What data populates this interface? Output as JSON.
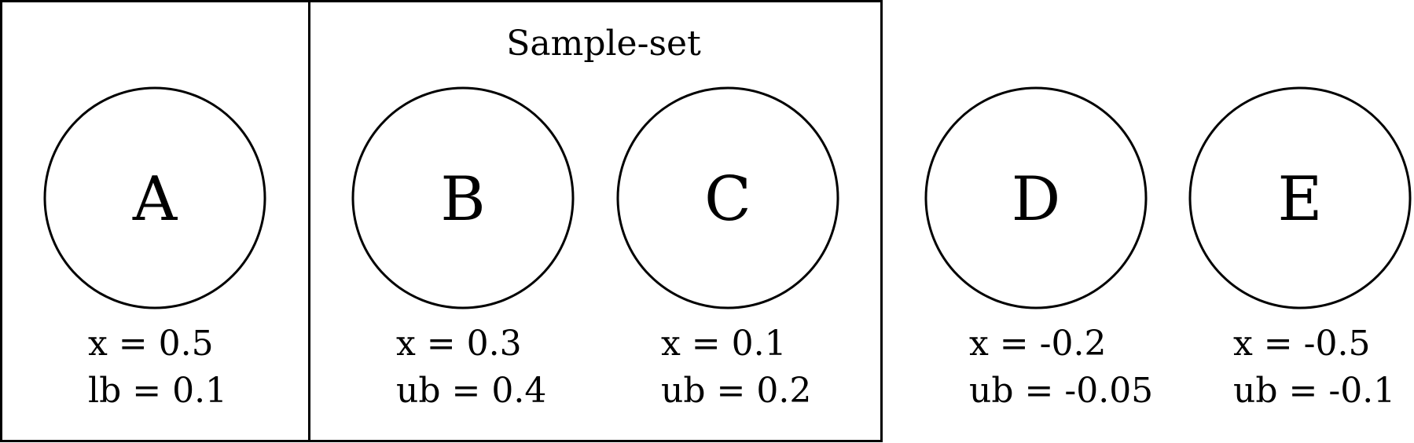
{
  "diagram": {
    "group_title": "Sample-set",
    "nodes": [
      {
        "id": "A",
        "letter": "A",
        "line1": "x = 0.5",
        "line2": "lb = 0.1"
      },
      {
        "id": "B",
        "letter": "B",
        "line1": "x = 0.3",
        "line2": "ub = 0.4"
      },
      {
        "id": "C",
        "letter": "C",
        "line1": "x = 0.1",
        "line2": "ub = 0.2"
      },
      {
        "id": "D",
        "letter": "D",
        "line1": "x = -0.2",
        "line2": "ub = -0.05"
      },
      {
        "id": "E",
        "letter": "E",
        "line1": "x = -0.5",
        "line2": "ub = -0.1"
      }
    ]
  }
}
